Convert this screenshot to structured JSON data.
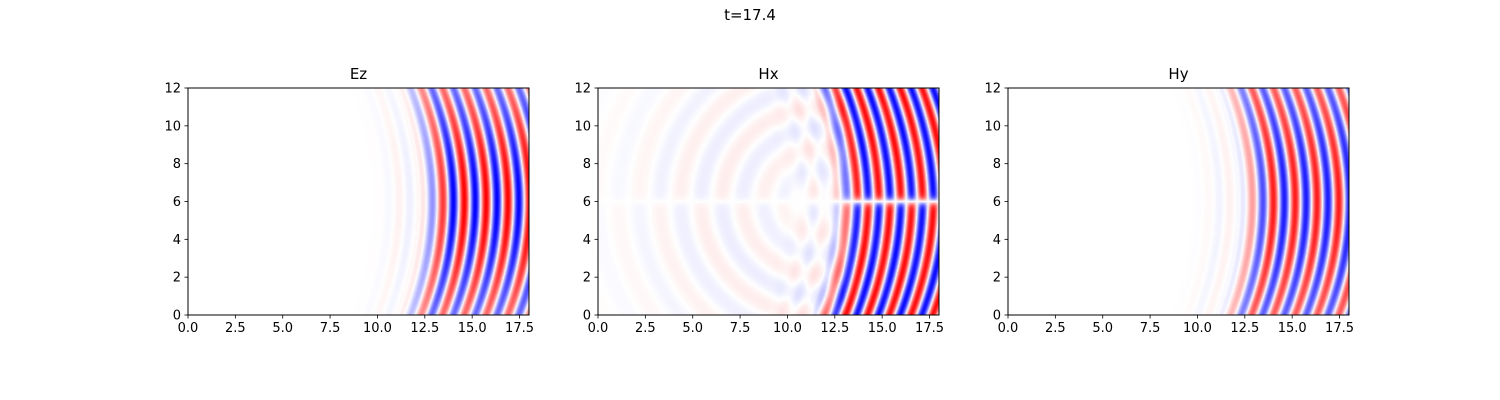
{
  "figure": {
    "suptitle": "t=17.4"
  },
  "chart_data": [
    {
      "type": "heatmap",
      "title": "Ez",
      "xlabel": "",
      "ylabel": "",
      "xlim": [
        0,
        18
      ],
      "ylim": [
        0,
        12
      ],
      "xticks": [
        "0.0",
        "2.5",
        "5.0",
        "7.5",
        "10.0",
        "12.5",
        "15.0",
        "17.5"
      ],
      "yticks": [
        "0",
        "2",
        "4",
        "6",
        "8",
        "10",
        "12"
      ],
      "colormap": "bwr",
      "field_pattern": "curved wavefronts, alternating red/blue bands between x≈12.5 and x=18, symmetric about y=6",
      "colors": {
        "positive": "#ff0000",
        "negative": "#0000ff",
        "zero": "#ffffff"
      }
    },
    {
      "type": "heatmap",
      "title": "Hx",
      "xlabel": "",
      "ylabel": "",
      "xlim": [
        0,
        18
      ],
      "ylim": [
        0,
        12
      ],
      "xticks": [
        "0.0",
        "2.5",
        "5.0",
        "7.5",
        "10.0",
        "12.5",
        "15.0",
        "17.5"
      ],
      "yticks": [
        "0",
        "2",
        "4",
        "6",
        "8",
        "10",
        "12"
      ],
      "colormap": "bwr",
      "field_pattern": "wavefronts antisymmetric about y=6 with a null line at y=6, faint reflections on the left",
      "colors": {
        "positive": "#ff0000",
        "negative": "#0000ff",
        "zero": "#ffffff"
      }
    },
    {
      "type": "heatmap",
      "title": "Hy",
      "xlabel": "",
      "ylabel": "",
      "xlim": [
        0,
        18
      ],
      "ylim": [
        0,
        12
      ],
      "xticks": [
        "0.0",
        "2.5",
        "5.0",
        "7.5",
        "10.0",
        "12.5",
        "15.0",
        "17.5"
      ],
      "yticks": [
        "0",
        "2",
        "4",
        "6",
        "8",
        "10",
        "12"
      ],
      "colormap": "bwr",
      "field_pattern": "curved wavefronts shifted half a wavelength relative to Ez",
      "colors": {
        "positive": "#ff0000",
        "negative": "#0000ff",
        "zero": "#ffffff"
      }
    }
  ]
}
